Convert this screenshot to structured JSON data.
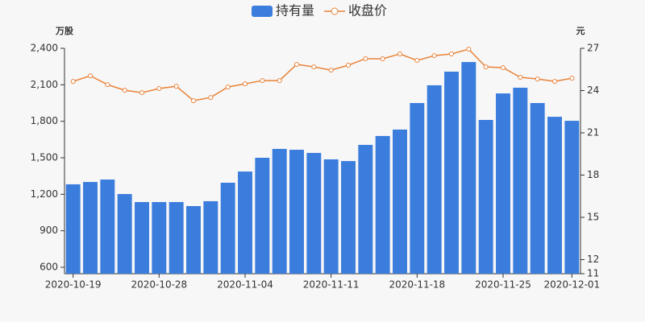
{
  "chart_data": {
    "type": "bar_line",
    "y_label": "万股",
    "y2_label": "元",
    "categories": [
      "2020-10-19",
      null,
      null,
      null,
      null,
      "2020-10-28",
      null,
      null,
      null,
      null,
      "2020-11-04",
      null,
      null,
      null,
      null,
      "2020-11-11",
      null,
      null,
      null,
      null,
      "2020-11-18",
      null,
      null,
      null,
      null,
      "2020-11-25",
      null,
      null,
      null,
      "2020-12-01"
    ],
    "series": [
      {
        "name": "持有量",
        "type": "bar",
        "color": "#3b7ddd",
        "values": [
          1282,
          1301,
          1321,
          1202,
          1136,
          1136,
          1136,
          1103,
          1143,
          1295,
          1387,
          1500,
          1573,
          1566,
          1540,
          1487,
          1473,
          1606,
          1679,
          1732,
          1950,
          2096,
          2208,
          2287,
          1811,
          2029,
          2076,
          1950,
          1837,
          1804
        ]
      },
      {
        "name": "收盘价",
        "type": "line",
        "axis": "y2",
        "color": "#e8833a",
        "values": [
          24.65,
          25.05,
          24.42,
          24.02,
          23.85,
          24.14,
          24.31,
          23.28,
          23.51,
          24.25,
          24.48,
          24.71,
          24.71,
          25.86,
          25.68,
          25.45,
          25.8,
          26.26,
          26.26,
          26.6,
          26.14,
          26.48,
          26.6,
          26.94,
          25.68,
          25.63,
          24.94,
          24.82,
          24.65,
          24.88
        ]
      }
    ],
    "ylim": [
      547,
      2400
    ],
    "yticks": [
      {
        "value": 600,
        "label": "600"
      },
      {
        "value": 900,
        "label": "900"
      },
      {
        "value": 1200,
        "label": "1,200"
      },
      {
        "value": 1500,
        "label": "1,500"
      },
      {
        "value": 1800,
        "label": "1,800"
      },
      {
        "value": 2100,
        "label": "2,100"
      },
      {
        "value": 2400,
        "label": "2,400"
      }
    ],
    "y2lim": [
      11,
      27
    ],
    "y2ticks": [
      11,
      12,
      15,
      18,
      21,
      24,
      27
    ]
  }
}
